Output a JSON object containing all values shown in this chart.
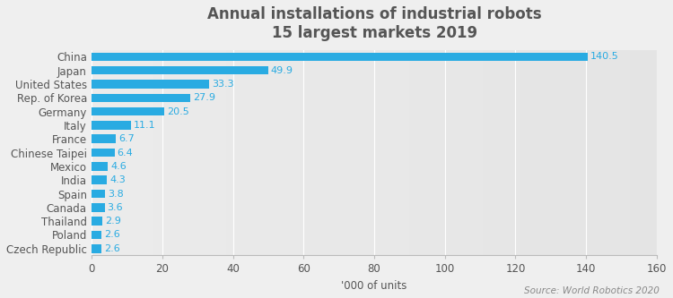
{
  "title_line1": "Annual installations of industrial robots",
  "title_line2": "15 largest markets 2019",
  "categories": [
    "China",
    "Japan",
    "United States",
    "Rep. of Korea",
    "Germany",
    "Italy",
    "France",
    "Chinese Taipei",
    "Mexico",
    "India",
    "Spain",
    "Canada",
    "Thailand",
    "Poland",
    "Czech Republic"
  ],
  "values": [
    140.5,
    49.9,
    33.3,
    27.9,
    20.5,
    11.1,
    6.7,
    6.4,
    4.6,
    4.3,
    3.8,
    3.6,
    2.9,
    2.6,
    2.6
  ],
  "bar_color": "#29ABE2",
  "xlabel": "'000 of units",
  "xlim": [
    0,
    160
  ],
  "xticks": [
    0,
    20,
    40,
    60,
    80,
    100,
    120,
    140,
    160
  ],
  "source_text": "Source: World Robotics 2020",
  "background_color": "#f0f0f0",
  "label_color": "#29ABE2",
  "title_fontsize": 12,
  "label_fontsize": 8,
  "tick_fontsize": 8.5,
  "title_color": "#555555"
}
